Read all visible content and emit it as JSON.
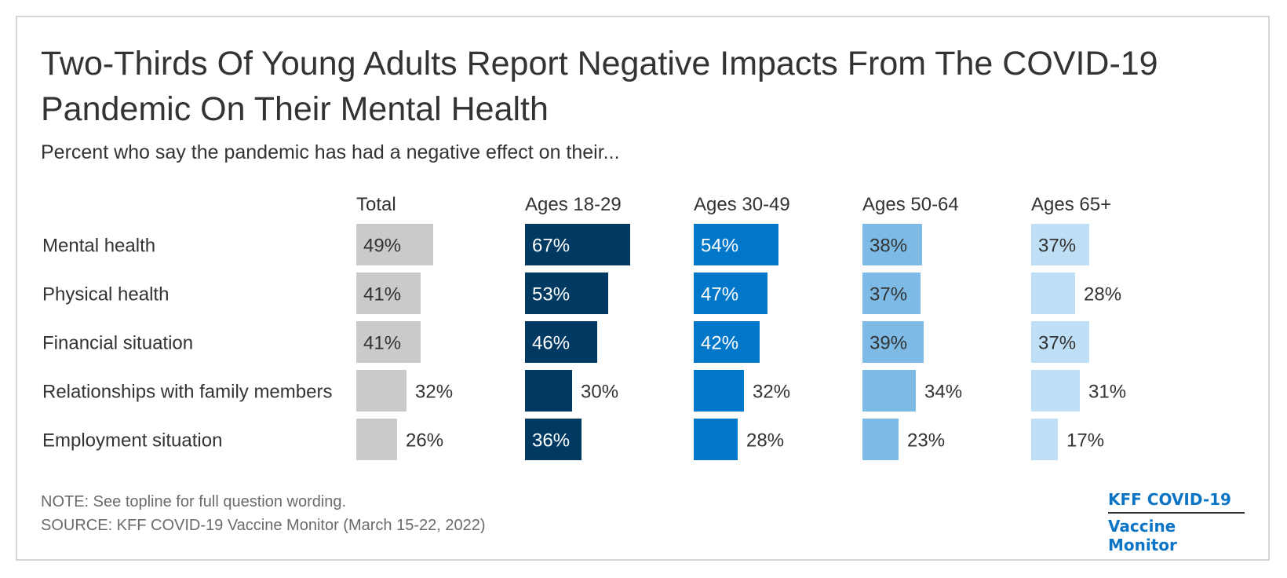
{
  "header": {
    "title": "Two-Thirds Of Young Adults Report Negative Impacts From The COVID-19 Pandemic On Their Mental Health",
    "subtitle": "Percent who say the pandemic has had a negative effect on their..."
  },
  "footer": {
    "note": "NOTE: See topline for full question wording.",
    "source": "SOURCE: KFF COVID-19 Vaccine Monitor (March 15-22, 2022)",
    "logo_line1": "KFF COVID-19",
    "logo_line2": "Vaccine Monitor"
  },
  "chart_data": {
    "type": "bar",
    "orientation": "horizontal",
    "layout": "small-multiples",
    "title": "Two-Thirds Of Young Adults Report Negative Impacts From The COVID-19 Pandemic On Their Mental Health",
    "subtitle": "Percent who say the pandemic has had a negative effect on their...",
    "categories": [
      "Mental health",
      "Physical health",
      "Financial situation",
      "Relationships with family members",
      "Employment situation"
    ],
    "unit": "%",
    "grid": false,
    "legend": "none",
    "series": [
      {
        "name": "Total",
        "values": [
          49,
          41,
          41,
          32,
          26
        ],
        "color": "#cacaca",
        "label_color_inside": "#333333"
      },
      {
        "name": "Ages 18-29",
        "values": [
          67,
          53,
          46,
          30,
          36
        ],
        "color": "#003a63",
        "label_color_inside": "#ffffff"
      },
      {
        "name": "Ages 30-49",
        "values": [
          54,
          47,
          42,
          32,
          28
        ],
        "color": "#0077c8",
        "label_color_inside": "#ffffff"
      },
      {
        "name": "Ages 50-64",
        "values": [
          38,
          37,
          39,
          34,
          23
        ],
        "color": "#7dbbe6",
        "label_color_inside": "#333333"
      },
      {
        "name": "Ages 65+",
        "values": [
          37,
          28,
          37,
          31,
          17
        ],
        "color": "#bedff5",
        "label_color_inside": "#333333"
      }
    ]
  }
}
